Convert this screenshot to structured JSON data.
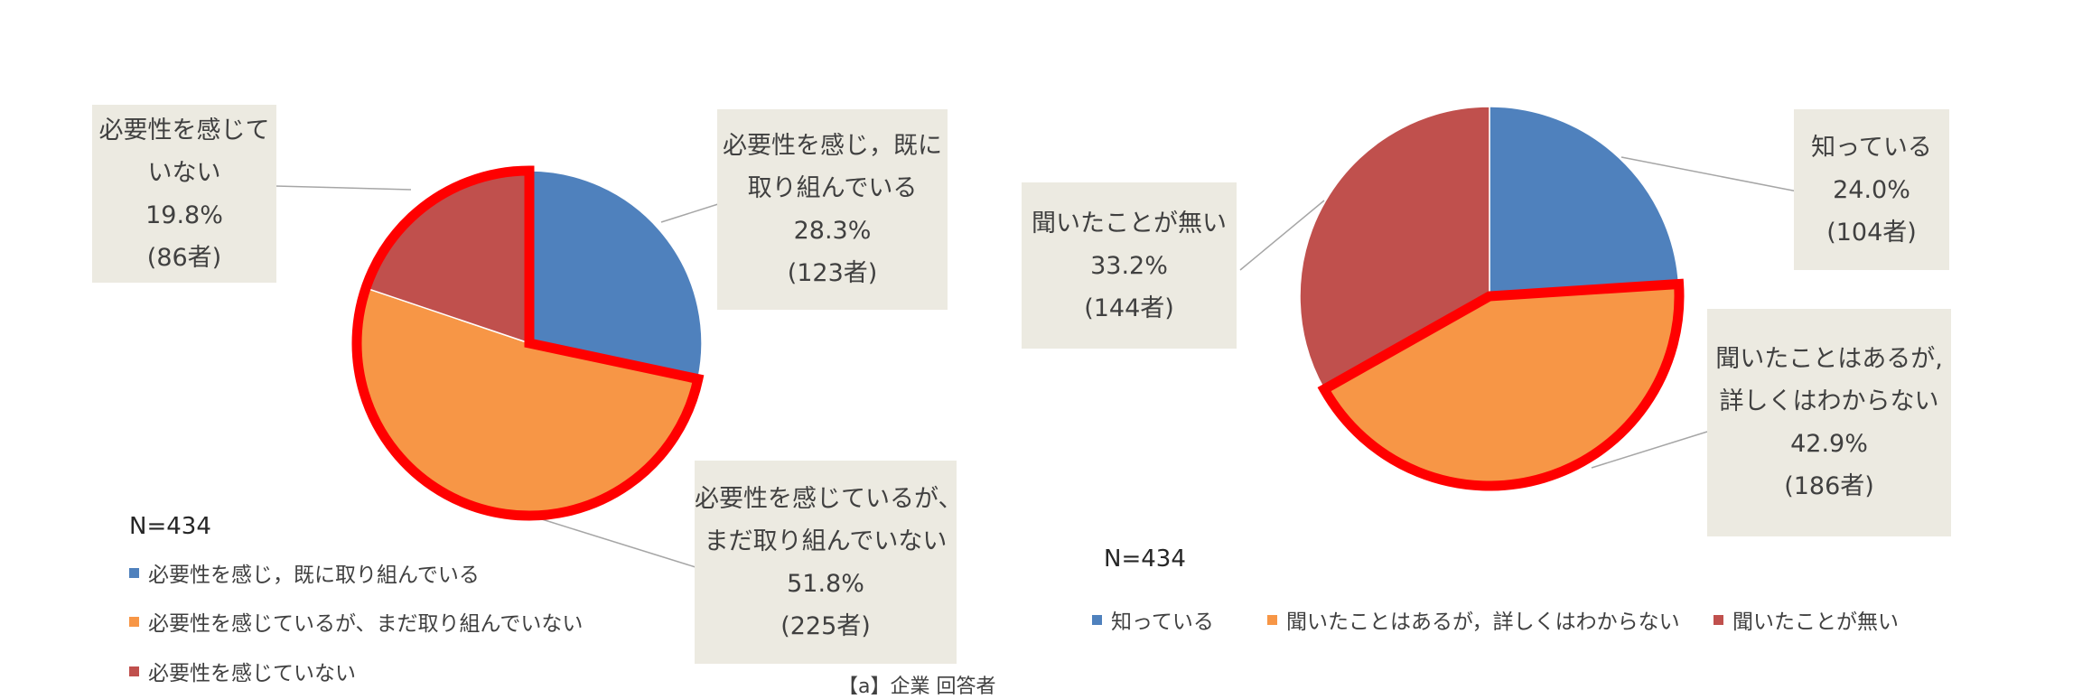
{
  "colors": {
    "blue": "#4f81bd",
    "orange": "#f79646",
    "red": "#c0504d",
    "highlight": "#ff0000",
    "callout_bg": "#eceae1"
  },
  "chart_data": [
    {
      "type": "pie",
      "n_label": "N=434",
      "slices": [
        {
          "label_lines": [
            "必要性を感じ，既に",
            "取り組んでいる"
          ],
          "legend": "必要性を感じ，既に取り組んでいる",
          "value": 28.3,
          "value_text": "28.3%",
          "count_text": "(123者)",
          "color": "#4f81bd",
          "highlighted": false
        },
        {
          "label_lines": [
            "必要性を感じているが、",
            "まだ取り組んでいない"
          ],
          "legend": "必要性を感じているが、まだ取り組んでいない",
          "value": 51.8,
          "value_text": "51.8%",
          "count_text": "(225者)",
          "color": "#f79646",
          "highlighted": true
        },
        {
          "label_lines": [
            "必要性を感じて",
            "いない"
          ],
          "legend": "必要性を感じていない",
          "value": 19.8,
          "value_text": "19.8%",
          "count_text": "(86者)",
          "color": "#c0504d",
          "highlighted": true
        }
      ],
      "legend_position": "bottom-left"
    },
    {
      "type": "pie",
      "n_label": "N=434",
      "slices": [
        {
          "label_lines": [
            "知っている"
          ],
          "legend": "知っている",
          "value": 24.0,
          "value_text": "24.0%",
          "count_text": "(104者)",
          "color": "#4f81bd",
          "highlighted": false
        },
        {
          "label_lines": [
            "聞いたことはあるが,",
            "詳しくはわからない"
          ],
          "legend": "聞いたことはあるが，詳しくはわからない",
          "value": 42.9,
          "value_text": "42.9%",
          "count_text": "(186者)",
          "color": "#f79646",
          "highlighted": true
        },
        {
          "label_lines": [
            "聞いたことが無い"
          ],
          "legend": "聞いたことが無い",
          "value": 33.2,
          "value_text": "33.2%",
          "count_text": "(144者)",
          "color": "#c0504d",
          "highlighted": false
        }
      ],
      "legend_position": "bottom"
    }
  ],
  "footnote": "【a】企業 回答者"
}
